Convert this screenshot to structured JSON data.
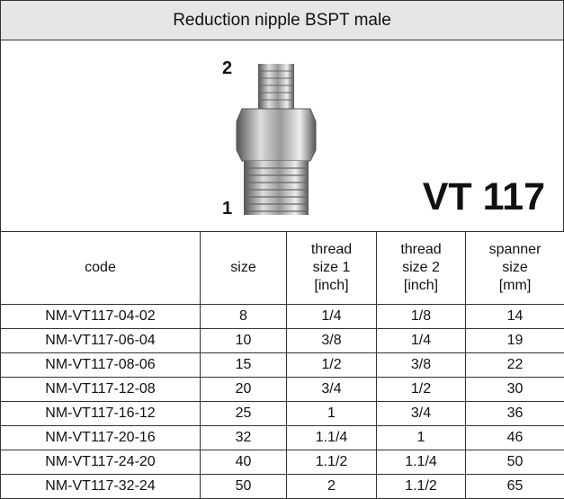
{
  "header": {
    "title": "Reduction nipple BSPT male"
  },
  "image": {
    "label_top": "2",
    "label_bottom": "1",
    "model": "VT 117"
  },
  "table": {
    "columns": [
      [
        "code"
      ],
      [
        "size"
      ],
      [
        "thread",
        "size 1",
        "[inch]"
      ],
      [
        "thread",
        "size 2",
        "[inch]"
      ],
      [
        "spanner",
        "size",
        "[mm]"
      ]
    ],
    "rows": [
      [
        "NM-VT117-04-02",
        "8",
        "1/4",
        "1/8",
        "14"
      ],
      [
        "NM-VT117-06-04",
        "10",
        "3/8",
        "1/4",
        "19"
      ],
      [
        "NM-VT117-08-06",
        "15",
        "1/2",
        "3/8",
        "22"
      ],
      [
        "NM-VT117-12-08",
        "20",
        "3/4",
        "1/2",
        "30"
      ],
      [
        "NM-VT117-16-12",
        "25",
        "1",
        "3/4",
        "36"
      ],
      [
        "NM-VT117-20-16",
        "32",
        "1.1/4",
        "1",
        "46"
      ],
      [
        "NM-VT117-24-20",
        "40",
        "1.1/2",
        "1.1/4",
        "50"
      ],
      [
        "NM-VT117-32-24",
        "50",
        "2",
        "1.1/2",
        "65"
      ]
    ]
  }
}
